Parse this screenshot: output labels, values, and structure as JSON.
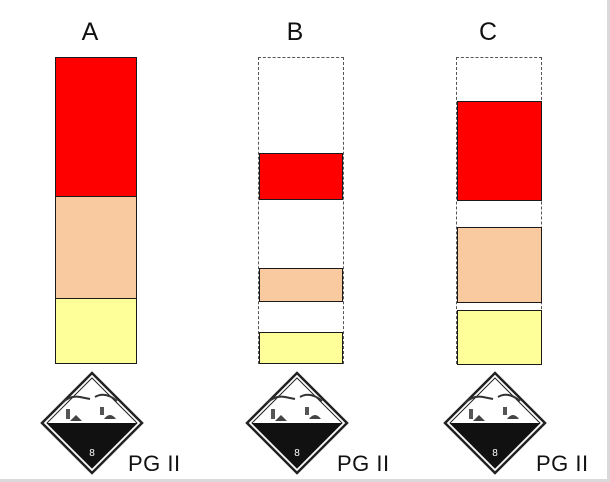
{
  "columns": [
    {
      "label": "A",
      "blocks": [
        {
          "level": "high",
          "color": "#ff0000"
        },
        {
          "level": "medium",
          "color": "#f9c9a0"
        },
        {
          "level": "low",
          "color": "#ffff99"
        }
      ],
      "pg_label": "PG II",
      "hazard_class": "8"
    },
    {
      "label": "B",
      "blocks": [
        {
          "level": "high",
          "color": "#ff0000"
        },
        {
          "level": "medium",
          "color": "#f9c9a0"
        },
        {
          "level": "low",
          "color": "#ffff99"
        }
      ],
      "pg_label": "PG II",
      "hazard_class": "8"
    },
    {
      "label": "C",
      "blocks": [
        {
          "level": "high",
          "color": "#ff0000"
        },
        {
          "level": "medium",
          "color": "#f9c9a0"
        },
        {
          "level": "low",
          "color": "#ffff99"
        }
      ],
      "pg_label": "PG II",
      "hazard_class": "8"
    }
  ],
  "hazard_icon": "corrosive-class-8-icon"
}
